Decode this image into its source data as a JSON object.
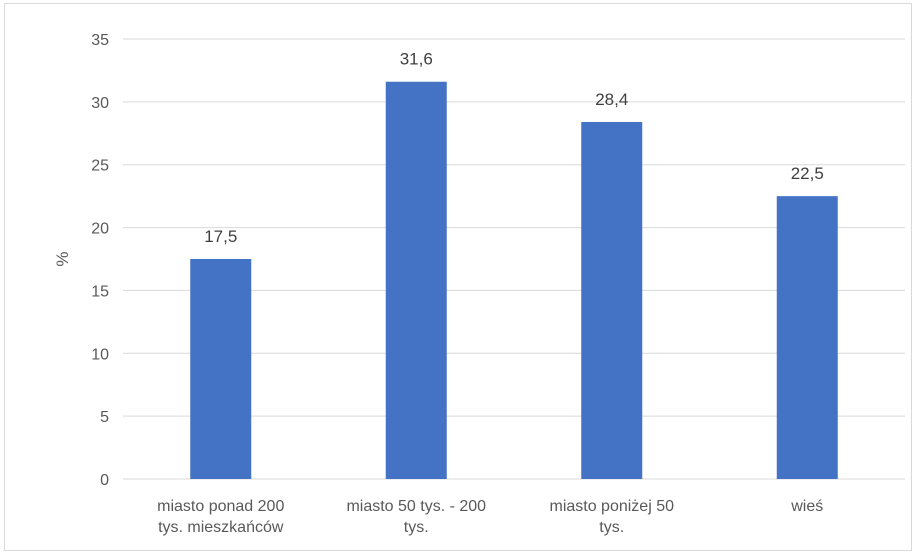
{
  "chart_data": {
    "type": "bar",
    "categories": [
      [
        "miasto ponad 200",
        "tys. mieszkańców"
      ],
      [
        "miasto 50 tys. -   200",
        "tys."
      ],
      [
        "miasto poniżej 50",
        "tys."
      ],
      [
        "wieś"
      ]
    ],
    "values": [
      17.5,
      31.6,
      28.4,
      22.5
    ],
    "data_labels": [
      "17,5",
      "31,6",
      "28,4",
      "22,5"
    ],
    "ylabel": "%",
    "ylim": [
      0,
      35
    ],
    "yticks": [
      "0",
      "5",
      "10",
      "15",
      "20",
      "25",
      "30",
      "35"
    ],
    "grid": true,
    "legend": "none",
    "colors": {
      "bar": "#4472c4",
      "grid": "#d9d9d9",
      "text": "#595959"
    }
  }
}
